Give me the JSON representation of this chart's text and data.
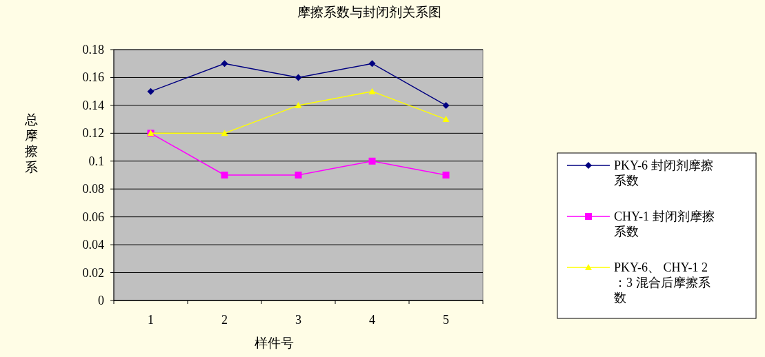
{
  "chart_data": {
    "type": "line",
    "title": "摩擦系数与封闭剂关系图",
    "xlabel": "样件号",
    "ylabel": "总摩擦系",
    "categories": [
      "1",
      "2",
      "3",
      "4",
      "5"
    ],
    "series": [
      {
        "name": "PKY-6 封闭剂摩擦系数",
        "color": "#000080",
        "marker": "diamond",
        "values": [
          0.15,
          0.17,
          0.16,
          0.17,
          0.14
        ]
      },
      {
        "name": "CHY-1 封闭剂摩擦系数",
        "color": "#ff00ff",
        "marker": "square",
        "values": [
          0.12,
          0.09,
          0.09,
          0.1,
          0.09
        ]
      },
      {
        "name": "PKY-6、 CHY-1 2：3 混合后摩擦系数",
        "color": "#ffff00",
        "marker": "triangle",
        "values": [
          0.12,
          0.12,
          0.14,
          0.15,
          0.13
        ]
      }
    ],
    "ylim": [
      0,
      0.18
    ],
    "yticks": [
      0,
      0.02,
      0.04,
      0.06,
      0.08,
      0.1,
      0.12,
      0.14,
      0.16,
      0.18
    ],
    "grid": "y",
    "legend": "right",
    "line_style": "solid"
  }
}
